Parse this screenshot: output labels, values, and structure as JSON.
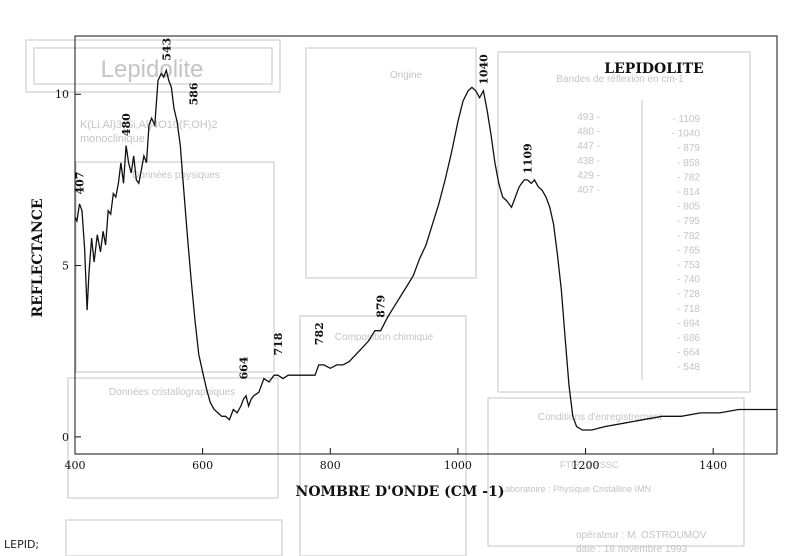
{
  "footer_label": "LEPID;",
  "colors": {
    "ink": "#111111",
    "ghost": "#c9c9c9",
    "ghost_text": "#bdbdbd"
  },
  "background_ghost": {
    "mineral_name": "Lepidolite",
    "formula": "K(Li,Al)3(Si,Al)4O10(F,OH)2",
    "system": "monoclinique",
    "origin_title": "Origine",
    "bands_title": "Bandes de réflexion en cm-1",
    "bands_col1": [
      "1109",
      "1040",
      "879",
      "858",
      "782",
      "814",
      "805",
      "795",
      "782",
      "765",
      "753",
      "740",
      "728",
      "718",
      "694",
      "686",
      "664",
      "548"
    ],
    "bands_col2": [
      "493",
      "480",
      "447",
      "438",
      "429",
      "407"
    ],
    "conditions_title": "Conditions d'enregistrement",
    "cristallo_title": "Données cristallographiques",
    "compo_title": "Composition chimique",
    "physique_title": "Données physiques",
    "operator": "opérateur : M. OSTROUMOV",
    "date": "date : 18 novembre 1993",
    "instrument": "Laboratoire : Physique Cristalline IMN",
    "resolution": "FTIR : 20 SSC"
  },
  "chart_data": {
    "type": "line",
    "title": "LEPIDOLITE",
    "xlabel": "NOMBRE D'ONDE (CM -1)",
    "ylabel": "REFLECTANCE",
    "xlim": [
      400,
      1500
    ],
    "ylim": [
      -0.5,
      11.7
    ],
    "xticks": [
      400,
      600,
      800,
      1000,
      1200,
      1400
    ],
    "yticks": [
      0,
      5,
      10
    ],
    "grid": false,
    "peak_labels": [
      {
        "x": 407,
        "y": 6.9,
        "label": "407"
      },
      {
        "x": 480,
        "y": 8.6,
        "label": "480"
      },
      {
        "x": 543,
        "y": 10.8,
        "label": "543"
      },
      {
        "x": 586,
        "y": 9.5,
        "label": "586"
      },
      {
        "x": 664,
        "y": 1.5,
        "label": "664"
      },
      {
        "x": 718,
        "y": 2.2,
        "label": "718"
      },
      {
        "x": 782,
        "y": 2.5,
        "label": "782"
      },
      {
        "x": 879,
        "y": 3.3,
        "label": "879"
      },
      {
        "x": 1040,
        "y": 10.1,
        "label": "1040"
      },
      {
        "x": 1109,
        "y": 7.5,
        "label": "1109"
      }
    ],
    "series": [
      {
        "x": [
          400,
          403,
          407,
          411,
          415,
          419,
          422,
          426,
          430,
          435,
          440,
          444,
          448,
          452,
          456,
          460,
          464,
          468,
          472,
          476,
          480,
          484,
          488,
          492,
          496,
          500,
          504,
          508,
          512,
          516,
          520,
          525,
          530,
          535,
          539,
          543,
          547,
          551,
          555,
          560,
          565,
          570,
          576,
          582,
          588,
          594,
          600,
          606,
          612,
          618,
          624,
          630,
          636,
          642,
          648,
          654,
          660,
          664,
          668,
          672,
          676,
          680,
          688,
          696,
          704,
          712,
          718,
          726,
          734,
          742,
          750,
          760,
          770,
          776,
          782,
          790,
          800,
          810,
          820,
          830,
          840,
          850,
          860,
          870,
          879,
          890,
          900,
          910,
          920,
          930,
          940,
          950,
          960,
          970,
          980,
          990,
          1000,
          1008,
          1016,
          1022,
          1028,
          1034,
          1040,
          1046,
          1052,
          1058,
          1064,
          1070,
          1076,
          1080,
          1084,
          1088,
          1092,
          1096,
          1100,
          1104,
          1109,
          1115,
          1120,
          1126,
          1132,
          1138,
          1144,
          1150,
          1156,
          1162,
          1168,
          1174,
          1180,
          1186,
          1195,
          1210,
          1230,
          1260,
          1290,
          1320,
          1350,
          1380,
          1410,
          1440,
          1470,
          1500
        ],
        "y": [
          6.4,
          6.3,
          6.8,
          6.6,
          5.5,
          3.7,
          4.8,
          5.8,
          5.1,
          5.9,
          5.4,
          6.0,
          5.6,
          6.6,
          6.5,
          7.1,
          7.0,
          7.4,
          8.0,
          7.4,
          8.5,
          8.0,
          7.7,
          8.2,
          7.5,
          7.4,
          7.8,
          8.2,
          8.0,
          9.1,
          9.3,
          9.1,
          10.4,
          10.6,
          10.5,
          10.7,
          10.4,
          10.2,
          9.6,
          9.2,
          8.5,
          7.3,
          5.9,
          4.6,
          3.4,
          2.4,
          1.9,
          1.4,
          1.0,
          0.8,
          0.7,
          0.6,
          0.6,
          0.5,
          0.8,
          0.7,
          0.9,
          1.1,
          1.2,
          0.9,
          1.1,
          1.2,
          1.3,
          1.7,
          1.6,
          1.8,
          1.8,
          1.7,
          1.8,
          1.8,
          1.8,
          1.8,
          1.8,
          1.8,
          2.1,
          2.1,
          2.0,
          2.1,
          2.1,
          2.2,
          2.4,
          2.6,
          2.8,
          3.1,
          3.1,
          3.5,
          3.8,
          4.1,
          4.4,
          4.7,
          5.2,
          5.6,
          6.2,
          6.8,
          7.5,
          8.3,
          9.2,
          9.8,
          10.1,
          10.2,
          10.1,
          9.9,
          10.1,
          9.5,
          8.8,
          8.0,
          7.4,
          7.0,
          6.9,
          6.8,
          6.7,
          6.9,
          7.1,
          7.3,
          7.4,
          7.5,
          7.5,
          7.4,
          7.5,
          7.3,
          7.2,
          7.0,
          6.7,
          6.2,
          5.3,
          4.3,
          2.9,
          1.5,
          0.6,
          0.3,
          0.2,
          0.2,
          0.3,
          0.4,
          0.5,
          0.6,
          0.6,
          0.7,
          0.7,
          0.8,
          0.8,
          0.8
        ]
      }
    ]
  }
}
